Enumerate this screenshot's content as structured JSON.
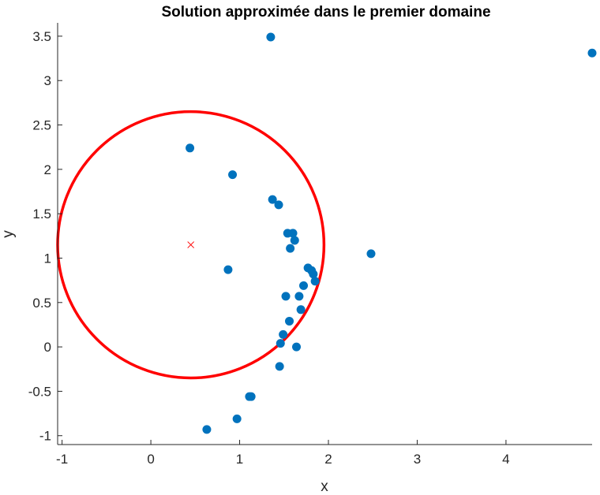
{
  "chart_data": {
    "type": "scatter",
    "title": "Solution approximée dans le premier domaine",
    "xlabel": "x",
    "ylabel": "y",
    "xlim": [
      -1.05,
      4.97
    ],
    "ylim": [
      -1.1,
      3.65
    ],
    "xticks": [
      -1,
      0,
      1,
      2,
      3,
      4
    ],
    "xtick_labels": [
      "-1",
      "0",
      "1",
      "2",
      "3",
      "4"
    ],
    "yticks": [
      -1,
      -0.5,
      0,
      0.5,
      1,
      1.5,
      2,
      2.5,
      3,
      3.5
    ],
    "ytick_labels": [
      "-1",
      "-0.5",
      "0",
      "0.5",
      "1",
      "1.5",
      "2",
      "2.5",
      "3",
      "3.5"
    ],
    "grid": false,
    "points": {
      "color": "#0072BD",
      "x": [
        1.35,
        4.97,
        0.44,
        0.92,
        1.37,
        1.44,
        1.54,
        1.6,
        1.62,
        1.57,
        2.48,
        0.87,
        1.77,
        1.81,
        1.83,
        1.85,
        1.72,
        1.52,
        1.67,
        1.69,
        1.56,
        1.49,
        1.46,
        1.64,
        1.45,
        1.11,
        1.13,
        0.97,
        0.63
      ],
      "y": [
        3.49,
        3.31,
        2.24,
        1.94,
        1.66,
        1.6,
        1.28,
        1.28,
        1.2,
        1.11,
        1.05,
        0.87,
        0.89,
        0.86,
        0.82,
        0.74,
        0.69,
        0.57,
        0.57,
        0.42,
        0.29,
        0.14,
        0.04,
        0.0,
        -0.22,
        -0.56,
        -0.56,
        -0.81,
        -0.93
      ]
    },
    "circle": {
      "cx": 0.45,
      "cy": 1.15,
      "r": 1.5,
      "color": "#FF0000"
    },
    "center_marker": {
      "x": 0.45,
      "y": 1.15,
      "symbol": "x",
      "color": "#FF0000"
    }
  }
}
